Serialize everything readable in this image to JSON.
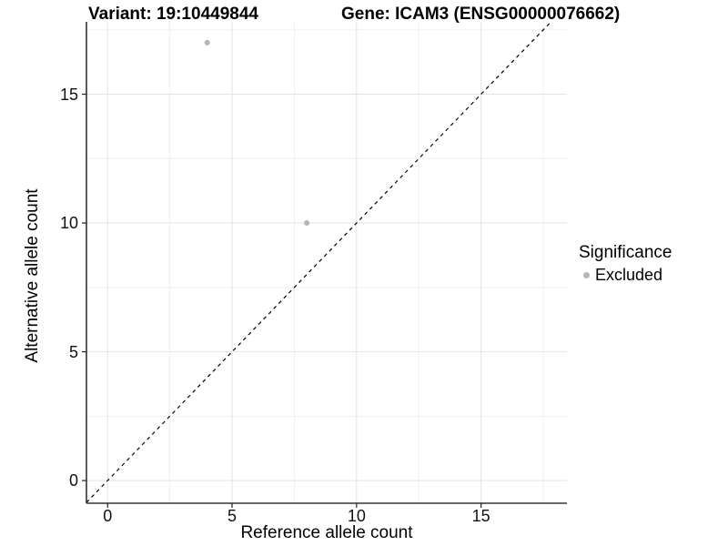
{
  "colors": {
    "point": "#b5b5b5",
    "grid_major": "#e3e3e3",
    "grid_minor": "#efefef",
    "axis_line": "#333333",
    "identity_line": "#000000",
    "tick_mark": "#222222",
    "text": "#000000"
  },
  "chart_data": {
    "type": "scatter",
    "title_left": "Variant: 19:10449844",
    "title_right": "Gene: ICAM3 (ENSG00000076662)",
    "xlabel": "Reference allele count",
    "ylabel": "Alternative allele count",
    "xlim": [
      -0.85,
      18.45
    ],
    "ylim": [
      -0.88,
      17.81
    ],
    "x_ticks": [
      0,
      5,
      10,
      15
    ],
    "y_ticks": [
      0,
      5,
      10,
      15
    ],
    "x_minor_ticks": [
      2.5,
      7.5,
      12.5,
      17.5
    ],
    "y_minor_ticks": [
      2.5,
      7.5,
      12.5,
      17.5
    ],
    "grid": true,
    "identity_line": {
      "type": "y=x",
      "style": "dashed"
    },
    "legend": {
      "title": "Significance",
      "position": "right",
      "entries": [
        {
          "label": "Excluded",
          "color": "#b5b5b5"
        }
      ]
    },
    "series": [
      {
        "name": "Excluded",
        "color": "#b5b5b5",
        "points": [
          {
            "x": 4,
            "y": 17
          },
          {
            "x": 8,
            "y": 10
          }
        ]
      }
    ]
  }
}
